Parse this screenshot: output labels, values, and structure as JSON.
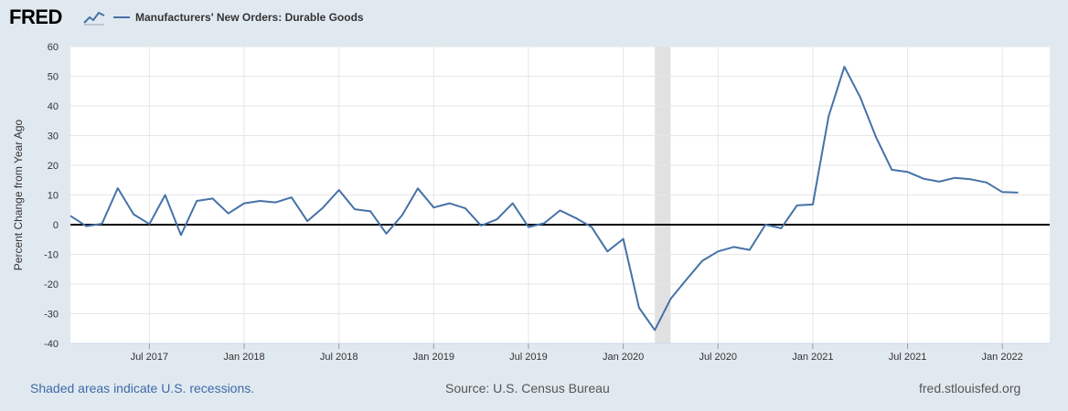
{
  "header": {
    "logo_text": "FRED",
    "series_title": "Manufacturers' New Orders: Durable Goods"
  },
  "footer": {
    "recession_note": "Shaded areas indicate U.S. recessions.",
    "source": "Source: U.S. Census Bureau",
    "site": "fred.stlouisfed.org"
  },
  "colors": {
    "line": "#4572a7",
    "background": "#e1e9f0",
    "plot_bg": "#ffffff",
    "recession": "#e1e1e1",
    "zero_line": "#000000"
  },
  "chart_data": {
    "type": "line",
    "title": "Manufacturers' New Orders: Durable Goods",
    "ylabel": "Percent Change from Year Ago",
    "xlabel": "",
    "ylim": [
      -40,
      60
    ],
    "yticks": [
      60,
      50,
      40,
      30,
      20,
      10,
      0,
      -10,
      -20,
      -30,
      -40
    ],
    "xlim": [
      "2017-02",
      "2022-04"
    ],
    "xticks": [
      {
        "date": "2017-07",
        "label": "Jul 2017"
      },
      {
        "date": "2018-01",
        "label": "Jan 2018"
      },
      {
        "date": "2018-07",
        "label": "Jul 2018"
      },
      {
        "date": "2019-01",
        "label": "Jan 2019"
      },
      {
        "date": "2019-07",
        "label": "Jul 2019"
      },
      {
        "date": "2020-01",
        "label": "Jan 2020"
      },
      {
        "date": "2020-07",
        "label": "Jul 2020"
      },
      {
        "date": "2021-01",
        "label": "Jan 2021"
      },
      {
        "date": "2021-07",
        "label": "Jul 2021"
      },
      {
        "date": "2022-01",
        "label": "Jan 2022"
      }
    ],
    "grid": true,
    "recessions": [
      {
        "start": "2020-03",
        "end": "2020-04"
      }
    ],
    "series": [
      {
        "name": "Manufacturers' New Orders: Durable Goods",
        "points": [
          [
            "2017-02",
            3.0
          ],
          [
            "2017-03",
            -0.5
          ],
          [
            "2017-04",
            0.3
          ],
          [
            "2017-05",
            12.3
          ],
          [
            "2017-06",
            3.5
          ],
          [
            "2017-07",
            0.2
          ],
          [
            "2017-08",
            10.0
          ],
          [
            "2017-09",
            -3.5
          ],
          [
            "2017-10",
            8.0
          ],
          [
            "2017-11",
            8.8
          ],
          [
            "2017-12",
            3.8
          ],
          [
            "2017-12",
            3.8
          ],
          [
            "2018-01",
            7.2
          ],
          [
            "2018-02",
            8.0
          ],
          [
            "2018-03",
            7.5
          ],
          [
            "2018-04",
            9.2
          ],
          [
            "2018-05",
            1.2
          ],
          [
            "2018-06",
            5.8
          ],
          [
            "2018-07",
            11.7
          ],
          [
            "2018-08",
            5.2
          ],
          [
            "2018-09",
            4.5
          ],
          [
            "2018-10",
            -3.0
          ],
          [
            "2018-11",
            3.2
          ],
          [
            "2018-12",
            12.2
          ],
          [
            "2019-01",
            5.8
          ],
          [
            "2019-02",
            7.2
          ],
          [
            "2019-03",
            5.5
          ],
          [
            "2019-04",
            -0.3
          ],
          [
            "2019-05",
            1.8
          ],
          [
            "2019-06",
            7.2
          ],
          [
            "2019-07",
            -0.8
          ],
          [
            "2019-08",
            0.5
          ],
          [
            "2019-09",
            4.8
          ],
          [
            "2019-10",
            2.2
          ],
          [
            "2019-11",
            -0.8
          ],
          [
            "2019-12",
            -9.0
          ],
          [
            "2020-01",
            -4.8
          ],
          [
            "2020-02",
            -28.0
          ],
          [
            "2020-03",
            -35.5
          ],
          [
            "2020-04",
            -25.0
          ],
          [
            "2020-05",
            -18.5
          ],
          [
            "2020-06",
            -12.2
          ],
          [
            "2020-07",
            -9.0
          ],
          [
            "2020-08",
            -7.5
          ],
          [
            "2020-09",
            -8.5
          ],
          [
            "2020-10",
            0.0
          ],
          [
            "2020-11",
            -1.2
          ],
          [
            "2020-12",
            6.5
          ],
          [
            "2021-01",
            6.8
          ],
          [
            "2021-02",
            36.5
          ],
          [
            "2021-03",
            53.2
          ],
          [
            "2021-04",
            43.0
          ],
          [
            "2021-05",
            29.5
          ],
          [
            "2021-06",
            18.5
          ],
          [
            "2021-07",
            17.8
          ],
          [
            "2021-08",
            15.5
          ],
          [
            "2021-09",
            14.5
          ],
          [
            "2021-10",
            15.8
          ],
          [
            "2021-11",
            15.3
          ],
          [
            "2021-12",
            14.2
          ],
          [
            "2022-01",
            11.0
          ],
          [
            "2022-02",
            10.8
          ]
        ]
      }
    ]
  }
}
